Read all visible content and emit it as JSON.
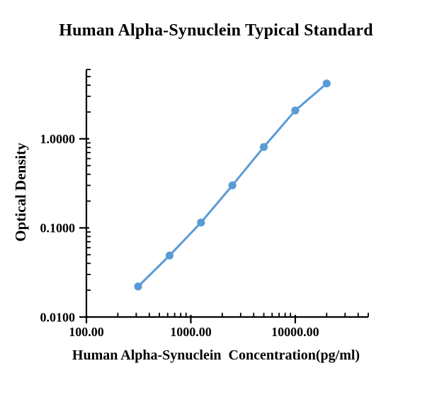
{
  "page": {
    "background_color": "#FFFFFF"
  },
  "chart_data": {
    "type": "line",
    "title": "Human Alpha-Synuclein Typical Standard",
    "xlabel": "Human Alpha-Synuclein  Concentration(pg/ml)",
    "ylabel": "Optical Density",
    "x_scale": "log",
    "y_scale": "log",
    "xlim": [
      100,
      50000
    ],
    "ylim": [
      0.01,
      6
    ],
    "grid": false,
    "legend": "none",
    "x": [
      312.5,
      625,
      1250,
      2500,
      5000,
      10000,
      20000
    ],
    "series": [
      {
        "name": "Human Alpha-Synuclein Typical Standard",
        "values": [
          0.022,
          0.049,
          0.115,
          0.3,
          0.81,
          2.08,
          4.18
        ]
      }
    ],
    "x_ticks": [
      {
        "value": 100,
        "label": "100.00"
      },
      {
        "value": 1000,
        "label": "1000.00"
      },
      {
        "value": 10000,
        "label": "10000.00"
      }
    ],
    "y_ticks": [
      {
        "value": 1.0,
        "label": "1.0000"
      },
      {
        "value": 0.1,
        "label": "0.1000"
      },
      {
        "value": 0.01,
        "label": "0.0100"
      }
    ],
    "line_color": "#5B9BD5",
    "marker_color": "#5B9BD5",
    "axis_color": "#000000",
    "text_color": "#000000"
  }
}
